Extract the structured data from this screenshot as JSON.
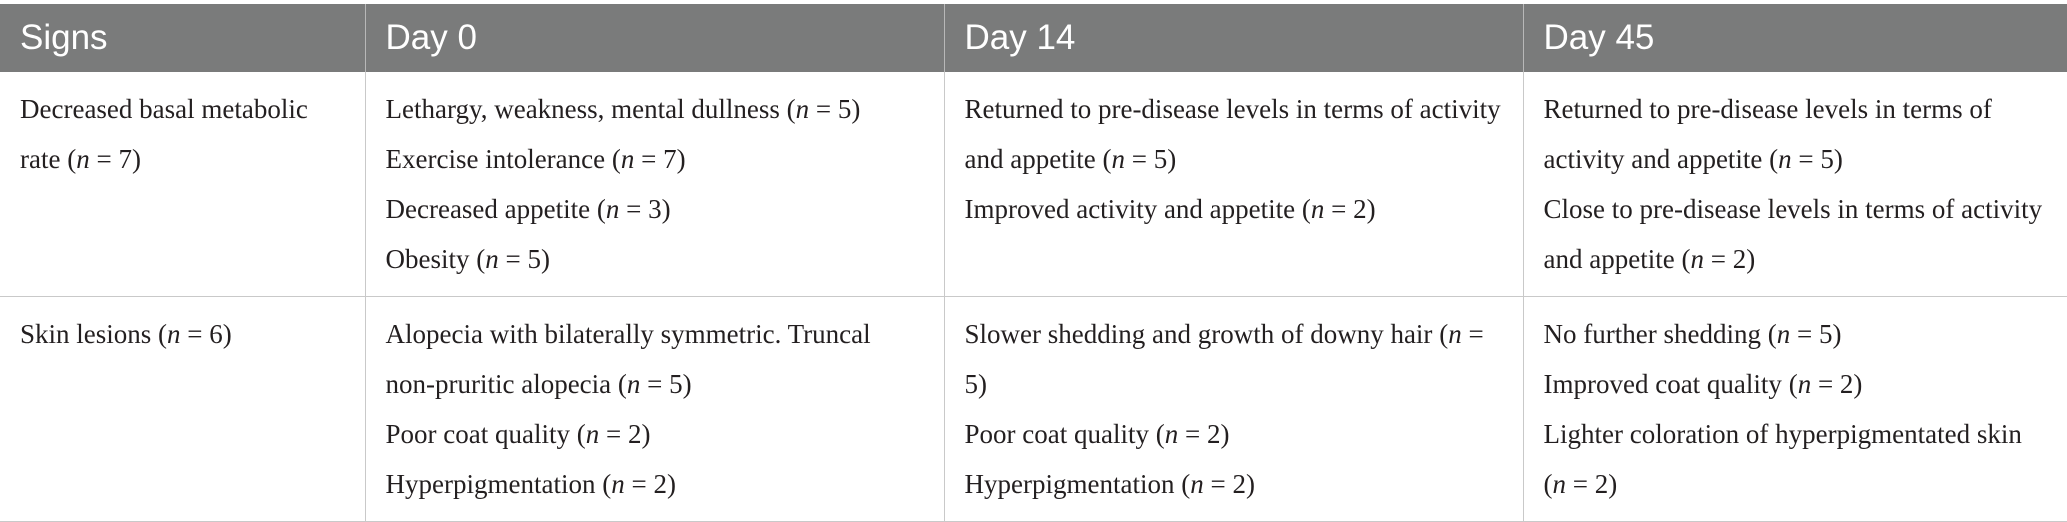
{
  "headers": [
    "Signs",
    "Day 0",
    "Day 14",
    "Day 45"
  ],
  "rows": [
    {
      "sign": "Decreased basal metabolic rate (n = 7)",
      "day0": [
        "Lethargy, weakness, mental dullness (n = 5)",
        "Exercise intolerance (n = 7)",
        "Decreased appetite (n = 3)",
        "Obesity (n = 5)"
      ],
      "day14": [
        "Returned to pre-disease levels in terms of activity and appetite (n = 5)",
        "Improved activity and appetite (n = 2)"
      ],
      "day45": [
        "Returned to pre-disease levels in terms of activity and appetite (n = 5)",
        "Close to pre-disease levels in terms of activity and appetite (n = 2)"
      ]
    },
    {
      "sign": "Skin lesions (n = 6)",
      "day0": [
        "Alopecia with bilaterally symmetric. Truncal non-pruritic alopecia (n = 5)",
        "Poor coat quality (n = 2)",
        "Hyperpigmentation (n = 2)"
      ],
      "day14": [
        "Slower shedding and growth of downy hair (n = 5)",
        "Poor coat quality (n = 2)",
        "Hyperpigmentation (n = 2)"
      ],
      "day45": [
        "No further shedding (n = 5)",
        "Improved coat quality (n = 2)",
        "Lighter coloration of hyperpigmentated skin (n = 2)"
      ]
    }
  ]
}
